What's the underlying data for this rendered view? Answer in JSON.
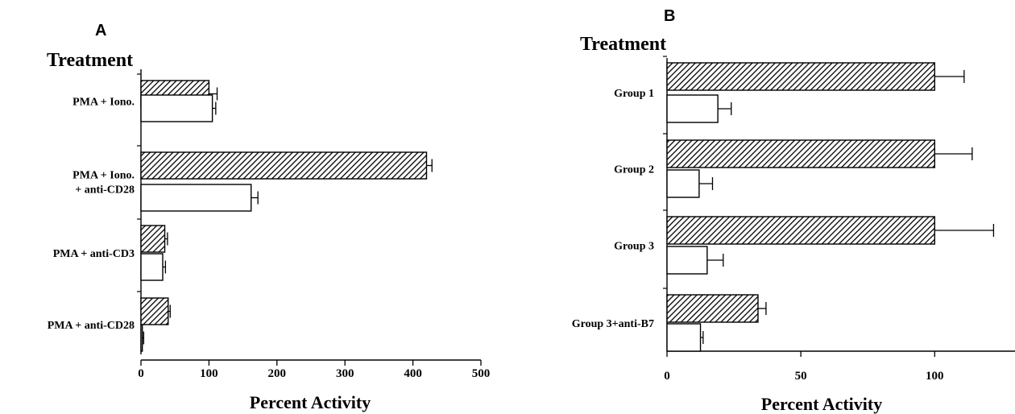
{
  "chart_data": [
    {
      "type": "bar",
      "orientation": "horizontal",
      "panel_label": "A",
      "ylabel": "Treatment",
      "xlabel": "Percent Activity",
      "xlim": [
        0,
        500
      ],
      "xticks": [
        0,
        100,
        200,
        300,
        400,
        500
      ],
      "grid": false,
      "legend": "none",
      "categories": [
        {
          "lines": [
            "PMA + Iono."
          ]
        },
        {
          "lines": [
            "PMA + Iono.",
            "+ anti-CD28"
          ]
        },
        {
          "lines": [
            "PMA + anti-CD3"
          ]
        },
        {
          "lines": [
            "PMA + anti-CD28"
          ]
        }
      ],
      "series": [
        {
          "pattern": "hatched",
          "values": [
            100,
            420,
            35,
            40
          ],
          "errors": [
            12,
            8,
            4,
            3
          ]
        },
        {
          "pattern": "open",
          "values": [
            105,
            162,
            32,
            2
          ],
          "errors": [
            5,
            10,
            4,
            2
          ]
        }
      ]
    },
    {
      "type": "bar",
      "orientation": "horizontal",
      "panel_label": "B",
      "ylabel": "Treatment",
      "xlabel": "Percent Activity",
      "xlim": [
        0,
        130
      ],
      "xticks": [
        0,
        50,
        100
      ],
      "grid": false,
      "legend": "none",
      "categories": [
        {
          "lines": [
            "Group 1"
          ]
        },
        {
          "lines": [
            "Group 2"
          ]
        },
        {
          "lines": [
            "Group 3"
          ]
        },
        {
          "lines": [
            "Group 3+anti-B7"
          ]
        }
      ],
      "series": [
        {
          "pattern": "hatched",
          "values": [
            100,
            100,
            100,
            34
          ],
          "errors": [
            11,
            14,
            22,
            3
          ]
        },
        {
          "pattern": "open",
          "values": [
            19,
            12,
            15,
            12.5
          ],
          "errors": [
            5,
            5,
            6,
            1
          ]
        }
      ]
    }
  ],
  "colors": {
    "ink": "#000000",
    "background": "#ffffff"
  }
}
